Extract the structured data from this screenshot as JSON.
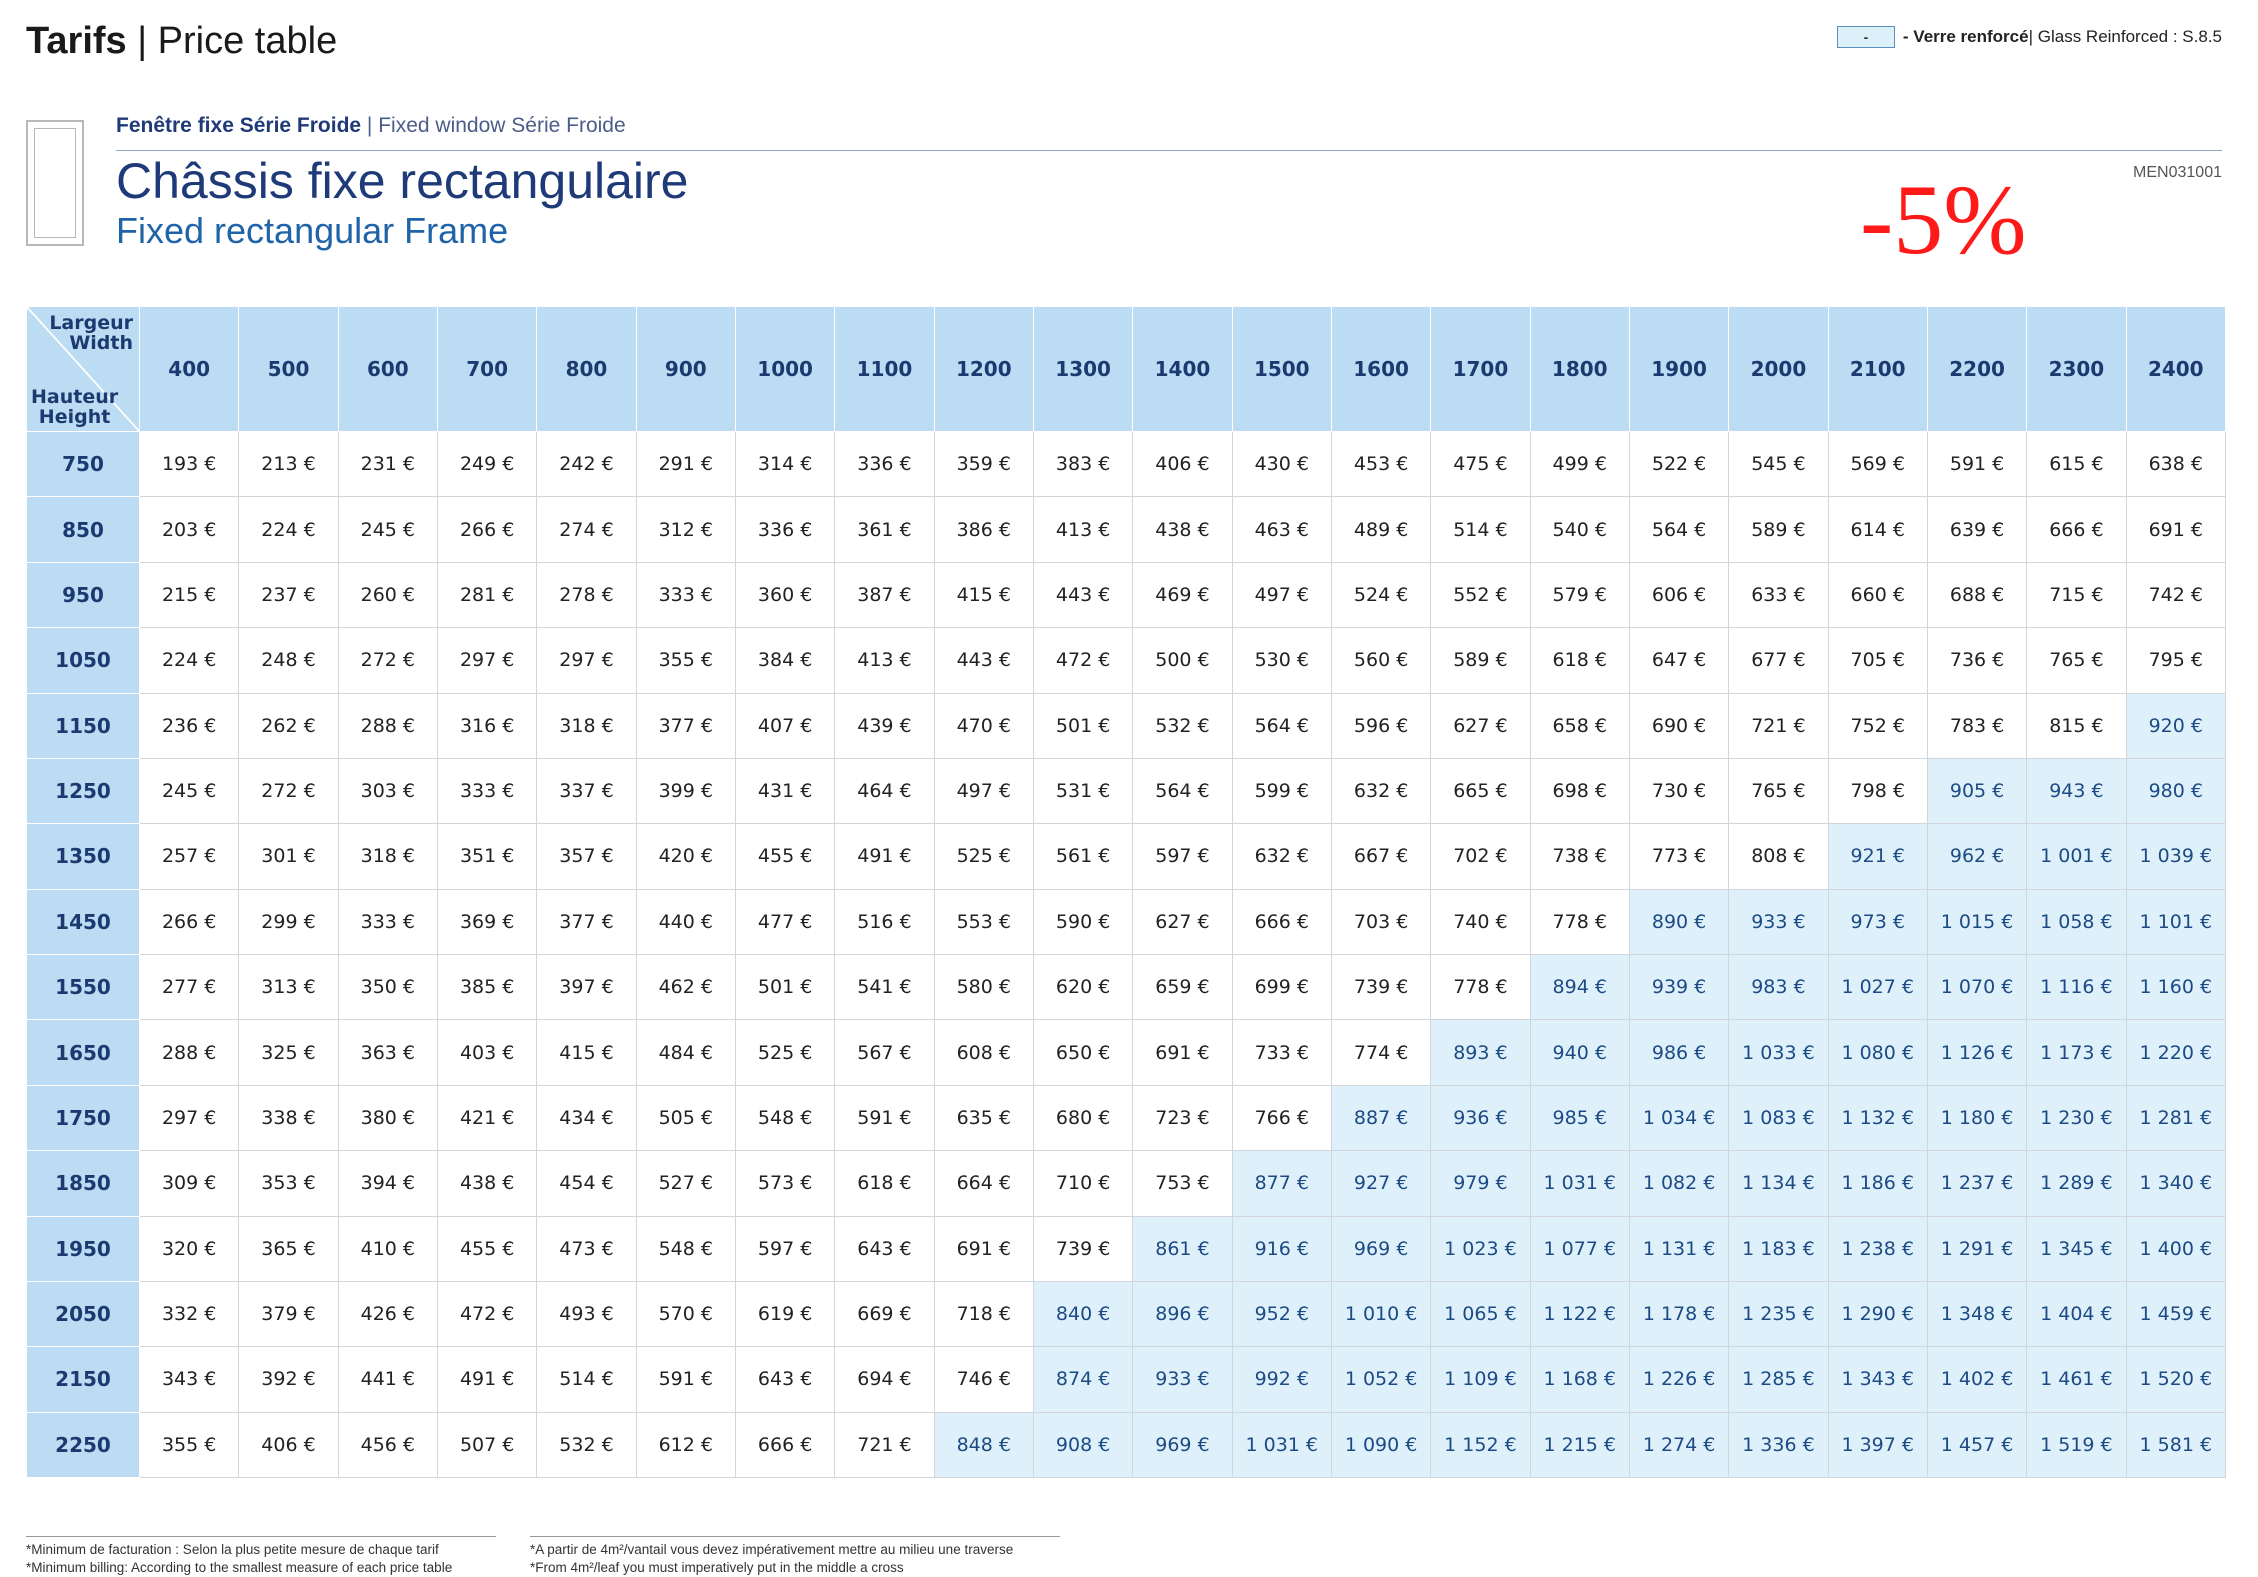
{
  "header": {
    "title_bold": "Tarifs",
    "title_sep": " | ",
    "title_light": "Price table"
  },
  "legend": {
    "swatch_label": "-",
    "text_bold": " - Verre renforcé",
    "text_light": " | Glass Reinforced : S.8.5",
    "swatch_color": "#dcf0fa"
  },
  "product": {
    "subtitle_bold": "Fenêtre fixe Série Froide",
    "subtitle_light": " | Fixed window Série Froide",
    "title_fr": "Châssis fixe rectangulaire",
    "title_en": "Fixed rectangular Frame",
    "ref_code": "MEN031001",
    "discount": "-5%"
  },
  "table": {
    "corner_width_fr": "Largeur",
    "corner_width_en": "Width",
    "corner_height_fr": "Hauteur",
    "corner_height_en": "Height",
    "widths": [
      "400",
      "500",
      "600",
      "700",
      "800",
      "900",
      "1000",
      "1100",
      "1200",
      "1300",
      "1400",
      "1500",
      "1600",
      "1700",
      "1800",
      "1900",
      "2000",
      "2100",
      "2200",
      "2300",
      "2400"
    ],
    "heights": [
      "750",
      "850",
      "950",
      "1050",
      "1150",
      "1250",
      "1350",
      "1450",
      "1550",
      "1650",
      "1750",
      "1850",
      "1950",
      "2050",
      "2150",
      "2250"
    ],
    "prices": [
      [
        "193 €",
        "213 €",
        "231 €",
        "249 €",
        "242 €",
        "291 €",
        "314 €",
        "336 €",
        "359 €",
        "383 €",
        "406 €",
        "430 €",
        "453 €",
        "475 €",
        "499 €",
        "522 €",
        "545 €",
        "569 €",
        "591 €",
        "615 €",
        "638 €"
      ],
      [
        "203 €",
        "224 €",
        "245 €",
        "266 €",
        "274 €",
        "312 €",
        "336 €",
        "361 €",
        "386 €",
        "413 €",
        "438 €",
        "463 €",
        "489 €",
        "514 €",
        "540 €",
        "564 €",
        "589 €",
        "614 €",
        "639 €",
        "666 €",
        "691 €"
      ],
      [
        "215 €",
        "237 €",
        "260 €",
        "281 €",
        "278 €",
        "333 €",
        "360 €",
        "387 €",
        "415 €",
        "443 €",
        "469 €",
        "497 €",
        "524 €",
        "552 €",
        "579 €",
        "606 €",
        "633 €",
        "660 €",
        "688 €",
        "715 €",
        "742 €"
      ],
      [
        "224 €",
        "248 €",
        "272 €",
        "297 €",
        "297 €",
        "355 €",
        "384 €",
        "413 €",
        "443 €",
        "472 €",
        "500 €",
        "530 €",
        "560 €",
        "589 €",
        "618 €",
        "647 €",
        "677 €",
        "705 €",
        "736 €",
        "765 €",
        "795 €"
      ],
      [
        "236 €",
        "262 €",
        "288 €",
        "316 €",
        "318 €",
        "377 €",
        "407 €",
        "439 €",
        "470 €",
        "501 €",
        "532 €",
        "564 €",
        "596 €",
        "627 €",
        "658 €",
        "690 €",
        "721 €",
        "752 €",
        "783 €",
        "815 €",
        "920 €"
      ],
      [
        "245 €",
        "272 €",
        "303 €",
        "333 €",
        "337 €",
        "399 €",
        "431 €",
        "464 €",
        "497 €",
        "531 €",
        "564 €",
        "599 €",
        "632 €",
        "665 €",
        "698 €",
        "730 €",
        "765 €",
        "798 €",
        "905 €",
        "943 €",
        "980 €"
      ],
      [
        "257 €",
        "301 €",
        "318 €",
        "351 €",
        "357 €",
        "420 €",
        "455 €",
        "491 €",
        "525 €",
        "561 €",
        "597 €",
        "632 €",
        "667 €",
        "702 €",
        "738 €",
        "773 €",
        "808 €",
        "921 €",
        "962 €",
        "1 001 €",
        "1 039 €"
      ],
      [
        "266 €",
        "299 €",
        "333 €",
        "369 €",
        "377 €",
        "440 €",
        "477 €",
        "516 €",
        "553 €",
        "590 €",
        "627 €",
        "666 €",
        "703 €",
        "740 €",
        "778 €",
        "890 €",
        "933 €",
        "973 €",
        "1 015 €",
        "1 058 €",
        "1 101 €"
      ],
      [
        "277 €",
        "313 €",
        "350 €",
        "385 €",
        "397 €",
        "462 €",
        "501 €",
        "541 €",
        "580 €",
        "620 €",
        "659 €",
        "699 €",
        "739 €",
        "778 €",
        "894 €",
        "939 €",
        "983 €",
        "1 027 €",
        "1 070 €",
        "1 116 €",
        "1 160 €"
      ],
      [
        "288 €",
        "325 €",
        "363 €",
        "403 €",
        "415 €",
        "484 €",
        "525 €",
        "567 €",
        "608 €",
        "650 €",
        "691 €",
        "733 €",
        "774 €",
        "893 €",
        "940 €",
        "986 €",
        "1 033 €",
        "1 080 €",
        "1 126 €",
        "1 173 €",
        "1 220 €"
      ],
      [
        "297 €",
        "338 €",
        "380 €",
        "421 €",
        "434 €",
        "505 €",
        "548 €",
        "591 €",
        "635 €",
        "680 €",
        "723 €",
        "766 €",
        "887 €",
        "936 €",
        "985 €",
        "1 034 €",
        "1 083 €",
        "1 132 €",
        "1 180 €",
        "1 230 €",
        "1 281 €"
      ],
      [
        "309 €",
        "353 €",
        "394 €",
        "438 €",
        "454 €",
        "527 €",
        "573 €",
        "618 €",
        "664 €",
        "710 €",
        "753 €",
        "877 €",
        "927 €",
        "979 €",
        "1 031 €",
        "1 082 €",
        "1 134 €",
        "1 186 €",
        "1 237 €",
        "1 289 €",
        "1 340 €"
      ],
      [
        "320 €",
        "365 €",
        "410 €",
        "455 €",
        "473 €",
        "548 €",
        "597 €",
        "643 €",
        "691 €",
        "739 €",
        "861 €",
        "916 €",
        "969 €",
        "1 023 €",
        "1 077 €",
        "1 131 €",
        "1 183 €",
        "1 238 €",
        "1 291 €",
        "1 345 €",
        "1 400 €"
      ],
      [
        "332 €",
        "379 €",
        "426 €",
        "472 €",
        "493 €",
        "570 €",
        "619 €",
        "669 €",
        "718 €",
        "840 €",
        "896 €",
        "952 €",
        "1 010 €",
        "1 065 €",
        "1 122 €",
        "1 178 €",
        "1 235 €",
        "1 290 €",
        "1 348 €",
        "1 404 €",
        "1 459 €"
      ],
      [
        "343 €",
        "392 €",
        "441 €",
        "491 €",
        "514 €",
        "591 €",
        "643 €",
        "694 €",
        "746 €",
        "874 €",
        "933 €",
        "992 €",
        "1 052 €",
        "1 109 €",
        "1 168 €",
        "1 226 €",
        "1 285 €",
        "1 343 €",
        "1 402 €",
        "1 461 €",
        "1 520 €"
      ],
      [
        "355 €",
        "406 €",
        "456 €",
        "507 €",
        "532 €",
        "612 €",
        "666 €",
        "721 €",
        "848 €",
        "908 €",
        "969 €",
        "1 031 €",
        "1 090 €",
        "1 152 €",
        "1 215 €",
        "1 274 €",
        "1 336 €",
        "1 397 €",
        "1 457 €",
        "1 519 €",
        "1 581 €"
      ]
    ],
    "reinforced_start_col": [
      21,
      21,
      21,
      21,
      20,
      18,
      17,
      15,
      14,
      13,
      12,
      11,
      10,
      9,
      9,
      8
    ]
  },
  "footnotes": {
    "left_fr": "*Minimum de facturation : Selon la plus petite mesure de chaque tarif",
    "left_en": "*Minimum billing: According to the smallest measure of each price table",
    "right_fr": "*A partir de 4m²/vantail vous devez impérativement mettre au milieu une traverse",
    "right_en": "*From 4m²/leaf you must imperatively put in the middle a cross"
  }
}
